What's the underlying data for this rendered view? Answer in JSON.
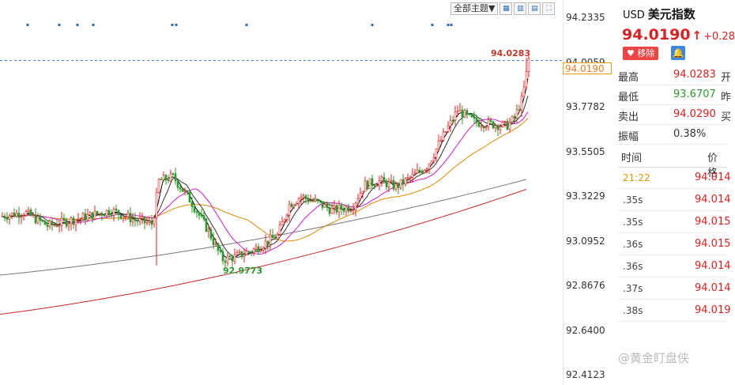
{
  "toolbar": {
    "theme_label": "全部主题▼",
    "icons": [
      "expand-icon",
      "candle-type-icon",
      "split-icon",
      "fullscreen-icon"
    ]
  },
  "yaxis": {
    "ticks": [
      "94.2335",
      "94.0059",
      "93.7782",
      "93.5505",
      "93.3229",
      "93.0952",
      "92.8676",
      "92.6400",
      "92.4123"
    ]
  },
  "price_tag": "94.0190",
  "annotations": {
    "high": "94.0283",
    "low": "92.9773"
  },
  "colors": {
    "up": "#e02020",
    "down": "#2a9a2a",
    "ma5": "#000000",
    "ma10": "#333333",
    "ma20": "#d11bd1",
    "ma60": "#e08a00",
    "ma120": "#777777",
    "ma250": "#c62828",
    "current": "#3a86e8"
  },
  "side": {
    "currency": "USD",
    "name": "美元指数",
    "last": "94.0190",
    "change": "+0.28",
    "remove_label": "移除",
    "stats": [
      {
        "label": "最高",
        "value": "94.0283",
        "color": "#e02020",
        "extra": "开"
      },
      {
        "label": "最低",
        "value": "93.6707",
        "color": "#2a9a2a",
        "extra": "昨"
      },
      {
        "label": "卖出",
        "value": "94.0290",
        "color": "#e02020",
        "extra": "买"
      },
      {
        "label": "振幅",
        "value": "0.38%",
        "color": "#333333",
        "extra": ""
      }
    ],
    "tick_header": {
      "time": "时间",
      "price": "价格"
    },
    "ticks": [
      {
        "time": "21:22",
        "price": "94.014",
        "highlight": true
      },
      {
        "time": ".35s",
        "price": "94.014"
      },
      {
        "time": ".35s",
        "price": "94.015"
      },
      {
        "time": ".36s",
        "price": "94.015"
      },
      {
        "time": ".36s",
        "price": "94.014"
      },
      {
        "time": ".37s",
        "price": "94.014"
      },
      {
        "time": ".38s",
        "price": "94.019"
      }
    ],
    "watermark": "@黄金盯盘侠"
  }
}
